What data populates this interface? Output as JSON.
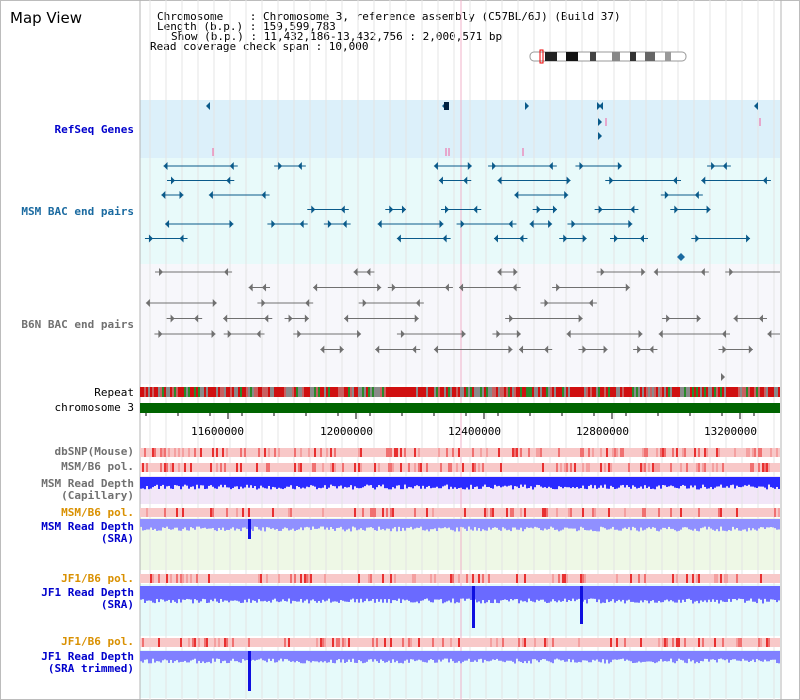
{
  "app": {
    "title": "Map View"
  },
  "header": {
    "chromosome_line": "Chromosome    : Chromosome 3, reference assembly (C57BL/6J) (Build 37)",
    "length_line": "Length (b.p.) : 159,599,783",
    "show_line": "Show (b.p.) : 11,432,186-13,432,756 : 2,000,571 bp",
    "coverage_line": "Read coverage check span : 10,000"
  },
  "axis": {
    "ticks": [
      "11600000",
      "12000000",
      "12400000",
      "12800000",
      "13200000"
    ],
    "tick_values": [
      11600000,
      12000000,
      12400000,
      12800000,
      13200000
    ],
    "range": [
      11432186,
      13432756
    ]
  },
  "tracks": {
    "refseq": "RefSeq Genes",
    "msm_bac": "MSM BAC end pairs",
    "b6n_bac": "B6N BAC end pairs",
    "repeat": "Repeat",
    "chromosome": "chromosome 3",
    "dbsnp": "dbSNP(Mouse)",
    "msm_b6_pol_1": "MSM/B6 pol.",
    "msm_depth_cap_1": "MSM Read Depth",
    "msm_depth_cap_2": "(Capillary)",
    "msm_b6_pol_2": "MSM/B6 pol.",
    "msm_depth_sra_1": "MSM Read Depth",
    "msm_depth_sra_2": "(SRA)",
    "jf1_pol_1": "JF1/B6 pol.",
    "jf1_depth_sra_1": "JF1 Read Depth",
    "jf1_depth_sra_2": "(SRA)",
    "jf1_pol_2": "JF1/B6 pol.",
    "jf1_depth_trim_1": "JF1 Read Depth",
    "jf1_depth_trim_2": "(SRA trimmed)"
  },
  "colors": {
    "refseq_bg": "#dcf0fa",
    "msm_bac_bg": "#e8fafa",
    "b6n_bac_bg": "#f7f7fb",
    "msm_blue": "#0a5a8a",
    "b6n_gray": "#707070",
    "label_blue": "#0000cc",
    "label_teal": "#1a6aa0",
    "label_orange": "#d99000",
    "chrom_green": "#006400",
    "depth_blue": "#7070ff",
    "depth_dark": "#1010e0"
  }
}
